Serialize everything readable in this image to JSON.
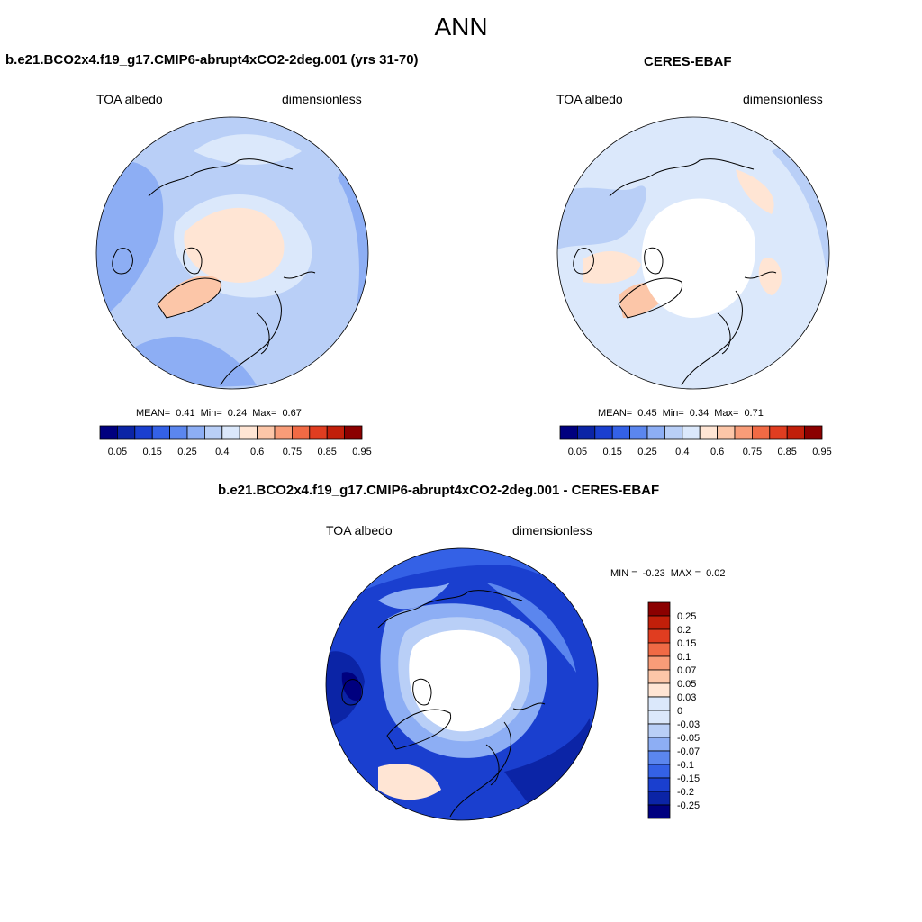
{
  "page_title": "ANN",
  "colors": {
    "scale": [
      "#00007f",
      "#0b24a6",
      "#1a3fcf",
      "#3461e6",
      "#5b86ee",
      "#8daef4",
      "#b9cff7",
      "#dbe8fb",
      "#ffe5d4",
      "#fcc6a8",
      "#f89c78",
      "#f06a45",
      "#e03d20",
      "#c11f0a",
      "#8b0000"
    ],
    "land_outline": "#000000",
    "missing": "#ffffff"
  },
  "panels": {
    "model": {
      "title": "b.e21.BCO2x4.f19_g17.CMIP6-abrupt4xCO2-2deg.001 (yrs 31-70)",
      "left_label": "TOA albedo",
      "right_label": "dimensionless",
      "mean_label": "MEAN=",
      "mean": "0.41",
      "min_label": "Min=",
      "min": "0.24",
      "max_label": "Max=",
      "max": "0.67",
      "colorbar_labels": [
        "0.05",
        "0.15",
        "0.25",
        "0.4",
        "0.6",
        "0.75",
        "0.85",
        "0.95"
      ]
    },
    "obs": {
      "title": "CERES-EBAF",
      "left_label": "TOA albedo",
      "right_label": "dimensionless",
      "mean_label": "MEAN=",
      "mean": "0.45",
      "min_label": "Min=",
      "min": "0.34",
      "max_label": "Max=",
      "max": "0.71",
      "colorbar_labels": [
        "0.05",
        "0.15",
        "0.25",
        "0.4",
        "0.6",
        "0.75",
        "0.85",
        "0.95"
      ]
    },
    "diff": {
      "title": "b.e21.BCO2x4.f19_g17.CMIP6-abrupt4xCO2-2deg.001 - CERES-EBAF",
      "left_label": "TOA albedo",
      "right_label": "dimensionless",
      "min_label": "MIN =",
      "min": "-0.23",
      "max_label": "MAX =",
      "max": "0.02",
      "colorbar_labels": [
        "0.25",
        "0.2",
        "0.15",
        "0.1",
        "0.07",
        "0.05",
        "0.03",
        "0",
        "-0.03",
        "-0.05",
        "-0.07",
        "-0.1",
        "-0.15",
        "-0.2",
        "-0.25"
      ]
    }
  }
}
